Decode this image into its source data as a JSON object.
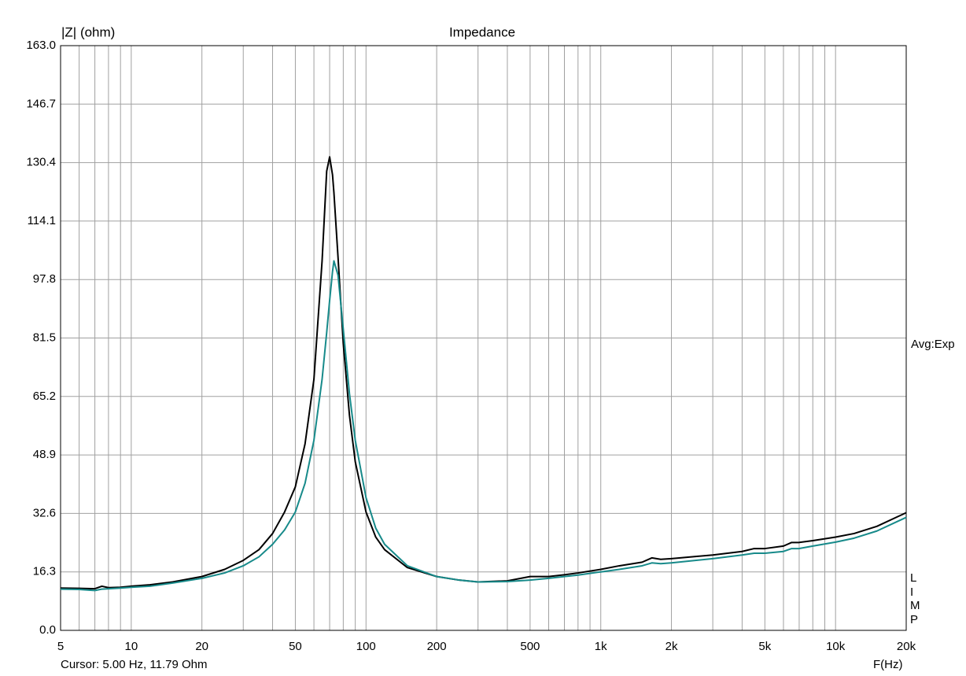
{
  "chart_data": {
    "type": "line",
    "title": "Impedance",
    "y_label": "|Z| (ohm)",
    "x_label": "F(Hz)",
    "right_label": "Avg:Exp",
    "side_label": "LIMP",
    "cursor": "Cursor: 5.00 Hz, 11.79 Ohm",
    "log_x": true,
    "grid": true,
    "xlim": [
      5,
      20000
    ],
    "ylim": [
      0,
      163
    ],
    "xticks": [
      5,
      10,
      20,
      50,
      100,
      200,
      500,
      {
        "value": 1000,
        "label": "1k"
      },
      {
        "value": 2000,
        "label": "2k"
      },
      {
        "value": 5000,
        "label": "5k"
      },
      {
        "value": 10000,
        "label": "10k"
      },
      {
        "value": 20000,
        "label": "20k"
      }
    ],
    "x_minor_grid": [
      6,
      7,
      8,
      9,
      30,
      40,
      60,
      70,
      80,
      90,
      300,
      400,
      600,
      700,
      800,
      900,
      3000,
      4000,
      6000,
      7000,
      8000,
      9000
    ],
    "yticks": [
      {
        "value": 0,
        "label": "0.0"
      },
      16.3,
      32.6,
      48.9,
      65.2,
      81.5,
      97.8,
      114.1,
      130.4,
      146.7,
      {
        "value": 163,
        "label": "163.0"
      }
    ],
    "x": [
      5,
      6,
      7,
      7.5,
      8,
      9,
      10,
      12,
      15,
      20,
      25,
      30,
      35,
      40,
      45,
      50,
      55,
      60,
      65,
      68,
      70,
      72,
      73,
      76,
      80,
      85,
      90,
      100,
      110,
      120,
      150,
      200,
      250,
      300,
      400,
      500,
      600,
      700,
      800,
      1000,
      1200,
      1500,
      1650,
      1800,
      2000,
      3000,
      4000,
      4500,
      5000,
      6000,
      6500,
      7000,
      8000,
      10000,
      12000,
      15000,
      20000
    ],
    "series": [
      {
        "color": "#000000",
        "values": [
          11.8,
          11.7,
          11.6,
          12.3,
          11.9,
          12.0,
          12.3,
          12.7,
          13.5,
          15.0,
          17.0,
          19.5,
          22.5,
          27,
          33,
          40,
          52,
          70,
          103,
          128,
          132,
          127,
          122,
          104,
          80,
          60,
          47,
          33,
          26,
          22.5,
          17.5,
          15,
          14,
          13.5,
          13.8,
          15,
          15,
          15.5,
          16,
          17,
          18,
          19,
          20.2,
          19.8,
          20,
          21,
          22,
          22.8,
          22.8,
          23.5,
          24.5,
          24.5,
          25,
          26,
          27,
          29,
          32.8
        ]
      },
      {
        "color": "#178a8a",
        "values": [
          11.5,
          11.4,
          11.1,
          11.5,
          11.6,
          11.8,
          12,
          12.3,
          13.2,
          14.5,
          16,
          18,
          20.5,
          24,
          28,
          33,
          41,
          53,
          70,
          83,
          92,
          100,
          103,
          99,
          84,
          66,
          53,
          37,
          28.5,
          24,
          18,
          15,
          14,
          13.5,
          13.6,
          14,
          14.5,
          15,
          15.4,
          16.3,
          17,
          18,
          18.8,
          18.6,
          18.8,
          20,
          21,
          21.5,
          21.5,
          22,
          22.8,
          22.8,
          23.5,
          24.6,
          25.7,
          27.7,
          31.5
        ]
      }
    ]
  }
}
